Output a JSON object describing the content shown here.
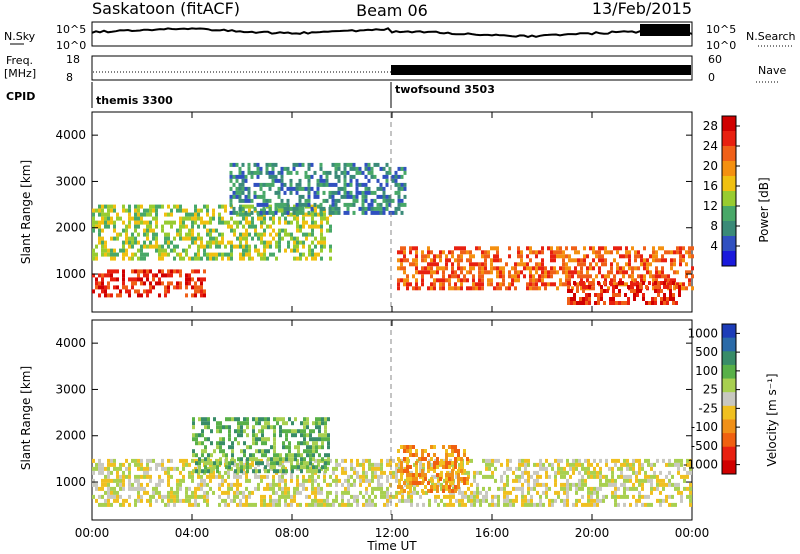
{
  "header": {
    "station": "Saskatoon (fitACF)",
    "beam": "Beam 06",
    "date": "13/Feb/2015"
  },
  "status_strip": {
    "nsky_label": "N.Sky",
    "nsky_ticks": [
      "10^5",
      "10^0"
    ],
    "nsearch_label": "N.Search",
    "nsearch_ticks": [
      "10^5",
      "10^0"
    ],
    "freq_label": "Freq.",
    "freq_unit": "[MHz]",
    "freq_ticks": [
      "18",
      "8"
    ],
    "nave_label": "Nave",
    "nave_ticks": [
      "60",
      "0"
    ],
    "cpid_label": "CPID",
    "cpid_segments": [
      {
        "name": "themis 3300",
        "start_hour": 0,
        "end_hour": 12
      },
      {
        "name": "twofsound 3503",
        "start_hour": 12,
        "end_hour": 24
      }
    ]
  },
  "chart_data": [
    {
      "type": "heatmap",
      "title": "Power",
      "xlabel": "Time UT",
      "ylabel": "Slant Range [km]",
      "x_ticks": [
        "00:00",
        "04:00",
        "08:00",
        "12:00",
        "16:00",
        "20:00",
        "00:00"
      ],
      "y_ticks": [
        "1000",
        "2000",
        "3000",
        "4000"
      ],
      "ylim": [
        180,
        4500
      ],
      "xlim": [
        0,
        24
      ],
      "colorbar_label": "Power [dB]",
      "colorbar_ticks": [
        "4",
        "8",
        "12",
        "16",
        "20",
        "24",
        "28"
      ],
      "colorbar_range": [
        0,
        30
      ],
      "colorbar_colors": [
        "#1a1adc",
        "#3050c0",
        "#3a8a78",
        "#48a868",
        "#98cc30",
        "#f0c010",
        "#f49010",
        "#f06018",
        "#e82010",
        "#d00000"
      ],
      "features": [
        {
          "name": "near-range echoes",
          "start_hour": 0.0,
          "end_hour": 4.5,
          "range_km": [
            500,
            1100
          ],
          "power_db": 28
        },
        {
          "name": "mid-range band",
          "start_hour": 0.0,
          "end_hour": 9.5,
          "range_km": [
            1300,
            2500
          ],
          "power_db": 12
        },
        {
          "name": "far-range band",
          "start_hour": 5.5,
          "end_hour": 12.5,
          "range_km": [
            2300,
            3400
          ],
          "power_db": 8
        },
        {
          "name": "post-noon band",
          "start_hour": 12.2,
          "end_hour": 24.0,
          "range_km": [
            700,
            1600
          ],
          "power_db": 22
        },
        {
          "name": "late strong echoes",
          "start_hour": 19.0,
          "end_hour": 23.5,
          "range_km": [
            380,
            850
          ],
          "power_db": 28
        }
      ]
    },
    {
      "type": "heatmap",
      "title": "Velocity",
      "xlabel": "Time UT",
      "ylabel": "Slant Range [km]",
      "x_ticks": [
        "00:00",
        "04:00",
        "08:00",
        "12:00",
        "16:00",
        "20:00",
        "00:00"
      ],
      "y_ticks": [
        "1000",
        "2000",
        "3000",
        "4000"
      ],
      "ylim": [
        180,
        4500
      ],
      "xlim": [
        0,
        24
      ],
      "colorbar_label": "Velocity [m s⁻¹]",
      "colorbar_ticks": [
        "1000",
        "500",
        "100",
        "25",
        "-25",
        "-100",
        "-500",
        "-1000"
      ],
      "colorbar_range": [
        -1000,
        1000
      ],
      "colorbar_colors": [
        "#1c3cb8",
        "#2a6aa8",
        "#388c68",
        "#58b048",
        "#a8d050",
        "#c8c8c0",
        "#f0c020",
        "#f09018",
        "#f06010",
        "#e82010",
        "#d00000"
      ],
      "features": [
        {
          "name": "ground scatter",
          "start_hour": 0.0,
          "end_hour": 24.0,
          "range_km": [
            500,
            1500
          ],
          "velocity": 0
        },
        {
          "name": "toward-radar patch",
          "start_hour": 4.0,
          "end_hour": 9.5,
          "range_km": [
            1200,
            2400
          ],
          "velocity": 150
        },
        {
          "name": "away-from-radar patch",
          "start_hour": 12.2,
          "end_hour": 15.0,
          "range_km": [
            800,
            1800
          ],
          "velocity": -300
        }
      ]
    }
  ]
}
